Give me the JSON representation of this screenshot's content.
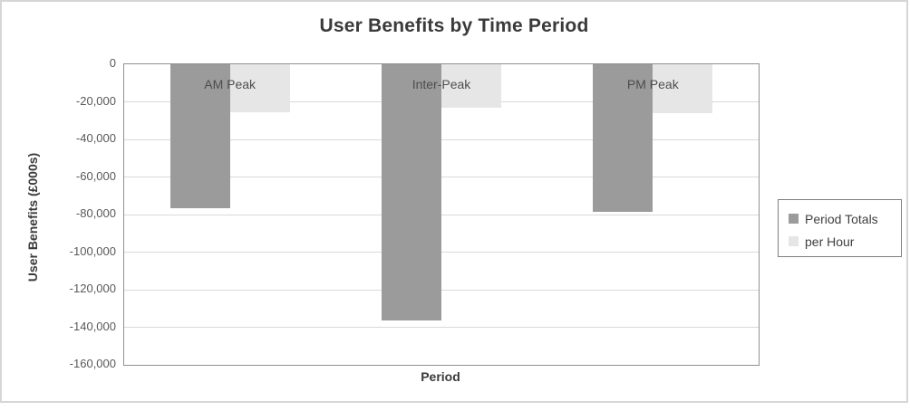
{
  "chart_data": {
    "type": "bar",
    "title": "User Benefits by Time Period",
    "xlabel": "Period",
    "ylabel": "User Benefits (£000s)",
    "categories": [
      "AM Peak",
      "Inter-Peak",
      "PM Peak"
    ],
    "series": [
      {
        "name": "Period Totals",
        "color": "#9b9b9b",
        "values": [
          -76500,
          -136500,
          -78500
        ]
      },
      {
        "name": "per Hour",
        "color": "#e6e6e6",
        "values": [
          -25500,
          -23000,
          -26000
        ]
      }
    ],
    "ylim": [
      -160000,
      0
    ],
    "yticks": [
      0,
      -20000,
      -40000,
      -60000,
      -80000,
      -100000,
      -120000,
      -140000,
      -160000
    ],
    "ytick_labels": [
      "0",
      "-20,000",
      "-40,000",
      "-60,000",
      "-80,000",
      "-100,000",
      "-120,000",
      "-140,000",
      "-160,000"
    ],
    "grid": true,
    "legend_position": "right",
    "legend_entries": [
      "Period Totals",
      "per Hour"
    ]
  },
  "colors": {
    "background": "#ffffff",
    "frame_border": "#d6d6d6",
    "plot_border": "#919191",
    "gridline": "#d9d9d9",
    "title_text": "#3a3a3a",
    "tick_text": "#595959",
    "category_label_text": "#4d4d4d",
    "legend_text": "#3f3f3f",
    "legend_border": "#7f7f7f"
  }
}
